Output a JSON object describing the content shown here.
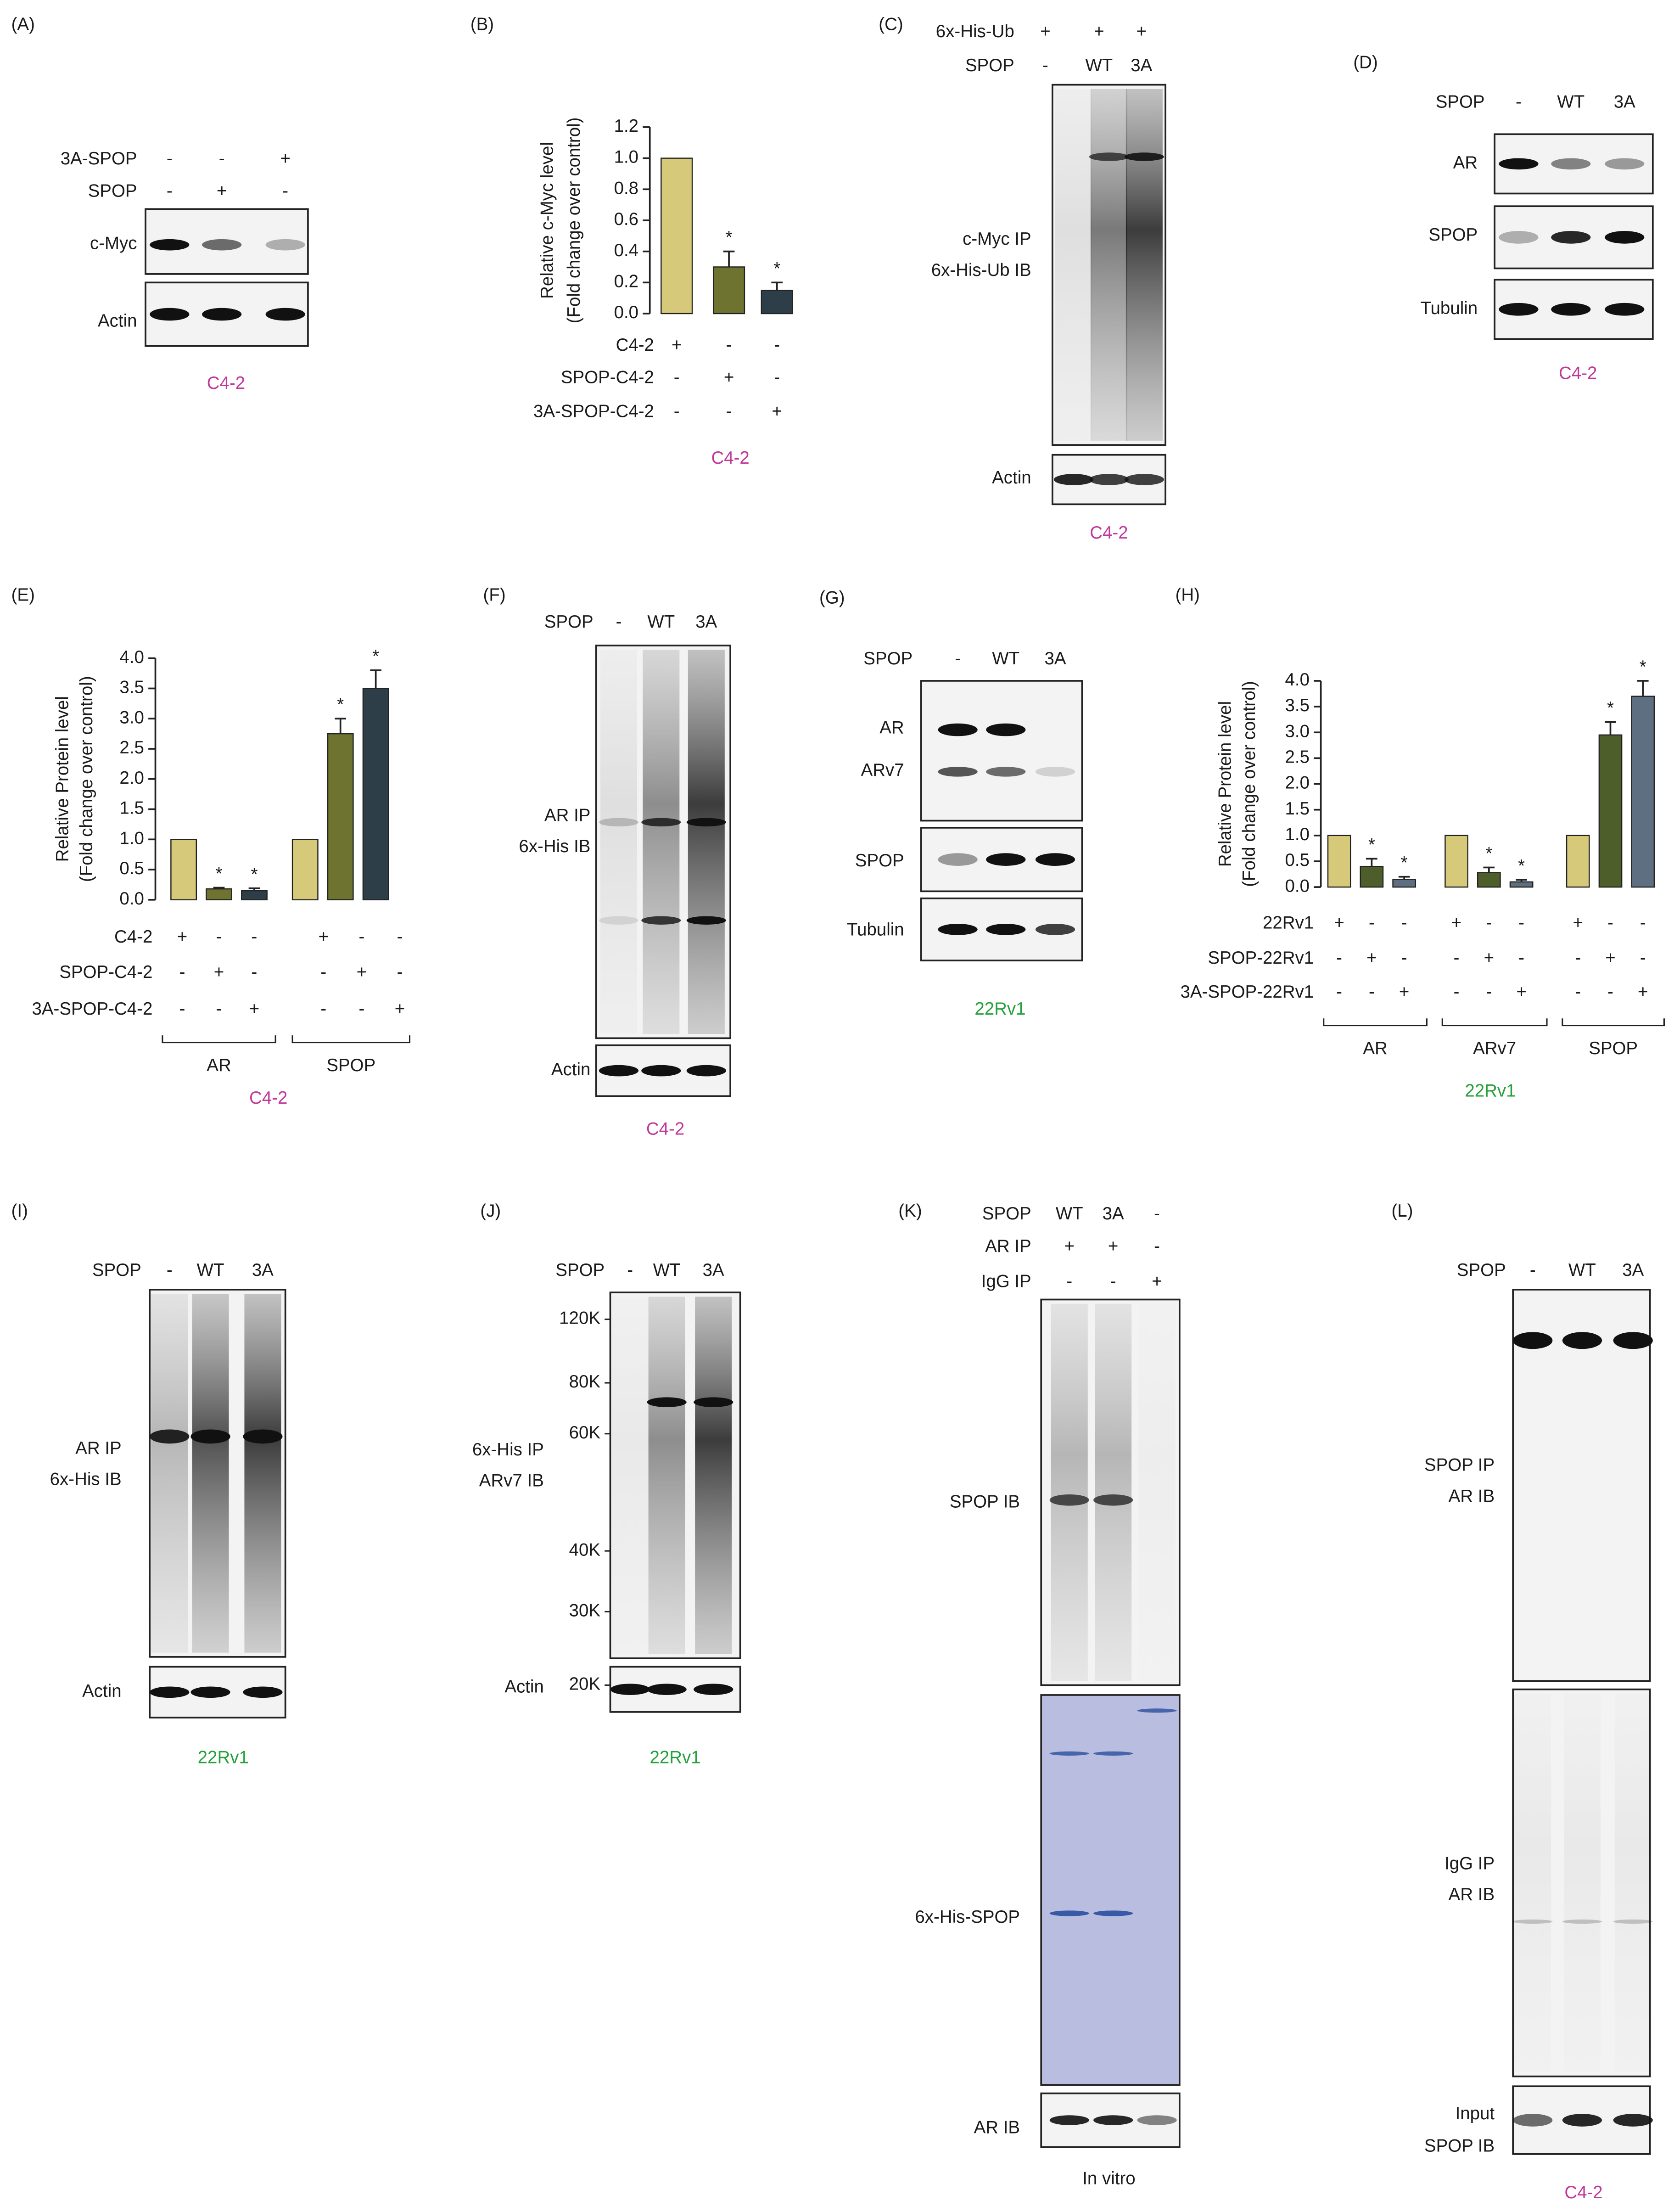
{
  "panels": {
    "A": {
      "label": "(A)",
      "rows": [
        {
          "name": "3A-SPOP",
          "signs": [
            "-",
            "-",
            "+"
          ]
        },
        {
          "name": "SPOP",
          "signs": [
            "-",
            "+",
            "-"
          ]
        }
      ],
      "blots": [
        [
          "c-Myc"
        ],
        [
          "Actin"
        ]
      ],
      "cell": "C4-2",
      "cell_color": "#c0399a"
    },
    "B": {
      "label": "(B)",
      "type": "bar",
      "ylabel": [
        "Relative c-Myc level",
        "(Fold change over control)"
      ],
      "values": [
        1.0,
        0.3,
        0.15
      ],
      "errors": [
        0,
        0.1,
        0.05
      ],
      "significant": [
        false,
        true,
        true
      ],
      "star": "*",
      "colors": [
        "#d6c97a",
        "#6e7330",
        "#2e3e48"
      ],
      "ylim": [
        0,
        1.2
      ],
      "yticks": [
        {
          "value": 0,
          "label": "0.0"
        },
        0.2,
        0.4,
        0.6,
        0.8,
        {
          "value": 1,
          "label": "1.0"
        },
        1.2
      ],
      "conditions": [
        {
          "name": "C4-2",
          "signs": [
            "+",
            "-",
            "-"
          ]
        },
        {
          "name": "SPOP-C4-2",
          "signs": [
            "-",
            "+",
            "-"
          ]
        },
        {
          "name": "3A-SPOP-C4-2",
          "signs": [
            "-",
            "-",
            "+"
          ]
        }
      ],
      "cell": "C4-2",
      "cell_color": "#c0399a"
    },
    "C": {
      "label": "(C)",
      "rows": [
        {
          "name": "6x-His-Ub",
          "signs": [
            "+",
            "+",
            "+"
          ]
        },
        {
          "name": "SPOP",
          "signs": [
            "-",
            "WT",
            "3A"
          ]
        }
      ],
      "blots": [
        [
          "c-Myc IP",
          "6x-His-Ub IB"
        ],
        [
          "Actin"
        ]
      ],
      "cell": "C4-2",
      "cell_color": "#c0399a"
    },
    "D": {
      "label": "(D)",
      "rows": [
        {
          "name": "SPOP",
          "signs": [
            "-",
            "WT",
            "3A"
          ]
        }
      ],
      "blots": [
        [
          "AR"
        ],
        [
          "SPOP"
        ],
        [
          "Tubulin"
        ]
      ],
      "cell": "C4-2",
      "cell_color": "#c0399a"
    },
    "E": {
      "label": "(E)",
      "type": "bar",
      "ylabel": [
        "Relative Protein level",
        "(Fold change over control)"
      ],
      "groups": [
        {
          "name": "AR",
          "values": [
            1.0,
            0.18,
            0.15
          ],
          "errors": [
            0,
            0.02,
            0.04
          ],
          "significant": [
            false,
            true,
            true
          ]
        },
        {
          "name": "SPOP",
          "values": [
            1.0,
            2.75,
            3.5
          ],
          "errors": [
            0,
            0.25,
            0.3
          ],
          "significant": [
            false,
            true,
            true
          ]
        }
      ],
      "star": "*",
      "colors": [
        "#d6c97a",
        "#6e7330",
        "#2e3e48"
      ],
      "ylim": [
        0,
        4
      ],
      "yticks": [
        {
          "value": 0,
          "label": "0.0"
        },
        0.5,
        {
          "value": 1,
          "label": "1.0"
        },
        1.5,
        {
          "value": 2,
          "label": "2.0"
        },
        2.5,
        {
          "value": 3,
          "label": "3.0"
        },
        3.5,
        {
          "value": 4,
          "label": "4.0"
        }
      ],
      "conditions": [
        {
          "name": "C4-2",
          "signs": [
            "+",
            "-",
            "-",
            "+",
            "-",
            "-"
          ]
        },
        {
          "name": "SPOP-C4-2",
          "signs": [
            "-",
            "+",
            "-",
            "-",
            "+",
            "-"
          ]
        },
        {
          "name": "3A-SPOP-C4-2",
          "signs": [
            "-",
            "-",
            "+",
            "-",
            "-",
            "+"
          ]
        }
      ],
      "cell": "C4-2",
      "cell_color": "#c0399a"
    },
    "F": {
      "label": "(F)",
      "rows": [
        {
          "name": "SPOP",
          "signs": [
            "-",
            "WT",
            "3A"
          ]
        }
      ],
      "blots": [
        [
          "AR IP",
          "6x-His IB"
        ],
        [
          "Actin"
        ]
      ],
      "cell": "C4-2",
      "cell_color": "#c0399a"
    },
    "G": {
      "label": "(G)",
      "rows": [
        {
          "name": "SPOP",
          "signs": [
            "-",
            "WT",
            "3A"
          ]
        }
      ],
      "blots": [
        [
          "AR",
          "ARv7"
        ],
        [
          "SPOP"
        ],
        [
          "Tubulin"
        ]
      ],
      "cell": "22Rv1",
      "cell_color": "#25a03a"
    },
    "H": {
      "label": "(H)",
      "type": "bar",
      "ylabel": [
        "Relative Protein level",
        "(Fold change over control)"
      ],
      "groups": [
        {
          "name": "AR",
          "values": [
            1.0,
            0.4,
            0.15
          ],
          "errors": [
            0,
            0.15,
            0.05
          ],
          "significant": [
            false,
            true,
            true
          ]
        },
        {
          "name": "ARv7",
          "values": [
            1.0,
            0.28,
            0.1
          ],
          "errors": [
            0,
            0.1,
            0.04
          ],
          "significant": [
            false,
            true,
            true
          ]
        },
        {
          "name": "SPOP",
          "values": [
            1.0,
            2.95,
            3.7
          ],
          "errors": [
            0,
            0.25,
            0.3
          ],
          "significant": [
            false,
            true,
            true
          ]
        }
      ],
      "star": "*",
      "colors": [
        "#d6c97a",
        "#4d5e2a",
        "#5d6f80"
      ],
      "ylim": [
        0,
        4
      ],
      "yticks": [
        {
          "value": 0,
          "label": "0.0"
        },
        0.5,
        {
          "value": 1,
          "label": "1.0"
        },
        1.5,
        {
          "value": 2,
          "label": "2.0"
        },
        2.5,
        {
          "value": 3,
          "label": "3.0"
        },
        3.5,
        {
          "value": 4,
          "label": "4.0"
        }
      ],
      "conditions": [
        {
          "name": "22Rv1",
          "signs": [
            "+",
            "-",
            "-",
            "+",
            "-",
            "-",
            "+",
            "-",
            "-"
          ]
        },
        {
          "name": "SPOP-22Rv1",
          "signs": [
            "-",
            "+",
            "-",
            "-",
            "+",
            "-",
            "-",
            "+",
            "-"
          ]
        },
        {
          "name": "3A-SPOP-22Rv1",
          "signs": [
            "-",
            "-",
            "+",
            "-",
            "-",
            "+",
            "-",
            "-",
            "+"
          ]
        }
      ],
      "cell": "22Rv1",
      "cell_color": "#25a03a"
    },
    "I": {
      "label": "(I)",
      "rows": [
        {
          "name": "SPOP",
          "signs": [
            "-",
            "WT",
            "3A"
          ]
        }
      ],
      "blots": [
        [
          "AR IP",
          "6x-His IB"
        ],
        [
          "Actin"
        ]
      ],
      "cell": "22Rv1",
      "cell_color": "#25a03a"
    },
    "J": {
      "label": "(J)",
      "rows": [
        {
          "name": "SPOP",
          "signs": [
            "-",
            "WT",
            "3A"
          ]
        }
      ],
      "markers": [
        "120K",
        "80K",
        "60K",
        "40K",
        "30K",
        "20K"
      ],
      "blots": [
        [
          "6x-His IP",
          "ARv7 IB"
        ],
        [
          "Actin"
        ]
      ],
      "cell": "22Rv1",
      "cell_color": "#25a03a"
    },
    "K": {
      "label": "(K)",
      "rows": [
        {
          "name": "SPOP",
          "signs": [
            "WT",
            "3A",
            "-"
          ]
        },
        {
          "name": "AR IP",
          "signs": [
            "+",
            "+",
            "-"
          ]
        },
        {
          "name": "IgG IP",
          "signs": [
            "-",
            "-",
            "+"
          ]
        }
      ],
      "blots": [
        [
          "SPOP IB"
        ],
        [
          "6x-His-SPOP"
        ],
        [
          "AR IB"
        ]
      ],
      "cell": "In vitro",
      "cell_color": "#1a1a1a"
    },
    "L": {
      "label": "(L)",
      "rows": [
        {
          "name": "SPOP",
          "signs": [
            "-",
            "WT",
            "3A"
          ]
        }
      ],
      "blots": [
        [
          "SPOP IP",
          "AR IB"
        ],
        [
          "IgG IP",
          "AR IB"
        ],
        [
          "Input",
          "SPOP IB"
        ]
      ],
      "cell": "C4-2",
      "cell_color": "#c0399a"
    }
  }
}
